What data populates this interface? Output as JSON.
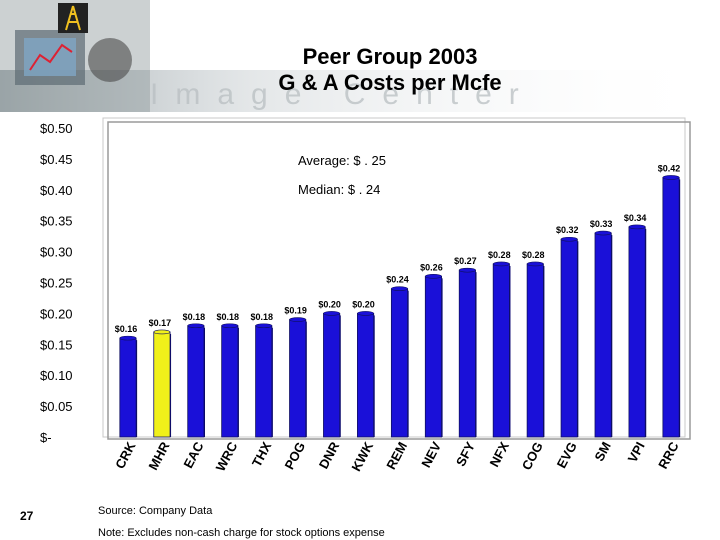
{
  "slide": {
    "title_line1": "Peer Group 2003",
    "title_line2": "G & A Costs per Mcfe",
    "banner_text": "Image Center",
    "page_number": "27",
    "source": "Source:  Company Data",
    "note": "Note:  Excludes non-cash charge for stock options expense"
  },
  "colors": {
    "bar_default": "#1a10d8",
    "bar_highlight": "#f0f01a",
    "background": "#ffffff"
  },
  "chart_data": {
    "type": "bar",
    "title": "Peer Group 2003 G & A Costs per Mcfe",
    "categories": [
      "CRK",
      "MHR",
      "EAC",
      "WRC",
      "THX",
      "POG",
      "DNR",
      "KWK",
      "REM",
      "NEV",
      "SFY",
      "NFX",
      "COG",
      "EVG",
      "SM",
      "VPI",
      "RRC"
    ],
    "values": [
      0.16,
      0.17,
      0.18,
      0.18,
      0.18,
      0.19,
      0.2,
      0.2,
      0.24,
      0.26,
      0.27,
      0.28,
      0.28,
      0.32,
      0.33,
      0.34,
      0.42
    ],
    "data_labels": [
      "$0.16",
      "$0.17",
      "$0.18",
      "$0.18",
      "$0.18",
      "$0.19",
      "$0.20",
      "$0.20",
      "$0.24",
      "$0.26",
      "$0.27",
      "$0.28",
      "$0.28",
      "$0.32",
      "$0.33",
      "$0.34",
      "$0.42"
    ],
    "highlight_category": "MHR",
    "y_tick_labels": [
      "$-",
      "$0.05",
      "$0.10",
      "$0.15",
      "$0.20",
      "$0.25",
      "$0.30",
      "$0.35",
      "$0.40",
      "$0.45",
      "$0.50"
    ],
    "ylim": [
      0,
      0.5
    ],
    "y_step": 0.05,
    "grid": false,
    "annotations": [
      "Average: $ . 25",
      "Median:   $ . 24"
    ]
  }
}
